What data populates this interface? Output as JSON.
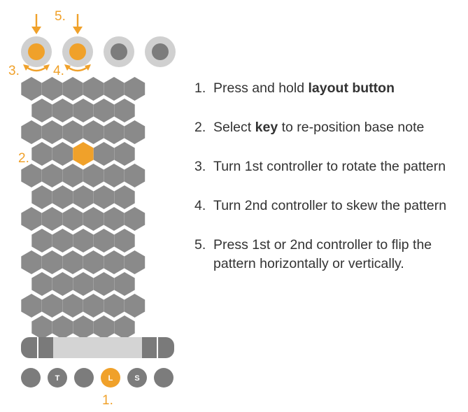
{
  "colors": {
    "hex_fill": "#8a8a8a",
    "highlight": "#f0a12a",
    "controller_ring": "#d0d0d0",
    "controller_knob": "#7c7c7c",
    "strip_dark": "#7a7a7a",
    "strip_light": "#d4d4d4",
    "text": "#333333"
  },
  "callouts": {
    "c1": "1.",
    "c2": "2.",
    "c3": "3.",
    "c4": "4.",
    "c5": "5."
  },
  "bottom_buttons": [
    "",
    "T",
    "",
    "L",
    "S",
    ""
  ],
  "instructions": [
    {
      "num": "1.",
      "parts": [
        {
          "t": "Press and hold "
        },
        {
          "t": "layout button",
          "b": true
        }
      ]
    },
    {
      "num": "2.",
      "parts": [
        {
          "t": "Select "
        },
        {
          "t": "key",
          "b": true
        },
        {
          "t": " to re-position base note"
        }
      ]
    },
    {
      "num": "3.",
      "parts": [
        {
          "t": "Turn 1st controller to rotate the pattern"
        }
      ]
    },
    {
      "num": "4.",
      "parts": [
        {
          "t": "Turn 2nd controller to skew the pattern"
        }
      ]
    },
    {
      "num": "5.",
      "parts": [
        {
          "t": "Press 1st or 2nd controller to flip the pattern horizontally or vertically."
        }
      ]
    }
  ]
}
